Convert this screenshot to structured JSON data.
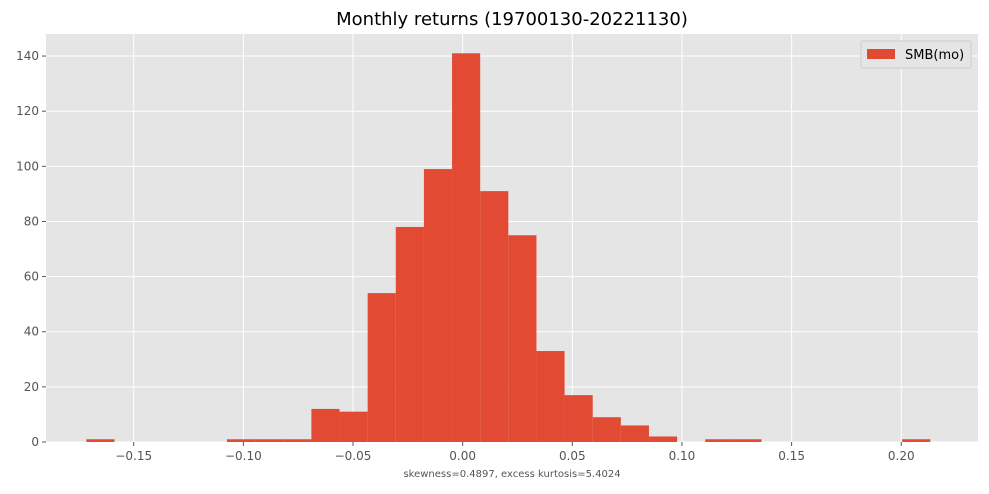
{
  "chart_data": {
    "type": "bar",
    "title": "Monthly returns (19700130-20221130)",
    "xlabel": "",
    "ylabel": "",
    "annotation": "skewness=0.4897, excess kurtosis=5.4024",
    "xlim": [
      -0.19,
      0.235
    ],
    "ylim": [
      0,
      148
    ],
    "x_ticks": [
      -0.15,
      -0.1,
      -0.05,
      0.0,
      0.05,
      0.1,
      0.15,
      0.2
    ],
    "x_tick_labels": [
      "−0.15",
      "−0.10",
      "−0.05",
      "0.00",
      "0.05",
      "0.10",
      "0.15",
      "0.20"
    ],
    "y_ticks": [
      0,
      20,
      40,
      60,
      80,
      100,
      120,
      140
    ],
    "y_tick_labels": [
      "0",
      "20",
      "40",
      "60",
      "80",
      "100",
      "120",
      "140"
    ],
    "grid": true,
    "legend": {
      "position": "top-right",
      "entries": [
        "SMB(mo)"
      ]
    },
    "series": [
      {
        "name": "SMB(mo)",
        "color": "#E24A33",
        "bin_start": -0.1716,
        "bin_width": 0.012828,
        "counts": [
          1,
          0,
          0,
          0,
          0,
          1,
          1,
          1,
          12,
          11,
          54,
          78,
          99,
          141,
          91,
          75,
          33,
          17,
          9,
          6,
          2,
          0,
          1,
          1,
          0,
          0,
          0,
          0,
          0,
          1
        ]
      }
    ]
  },
  "colors": {
    "plot_background": "#E5E5E5",
    "grid": "#FFFFFF",
    "bar": "#E24A33",
    "text": "#555555",
    "title": "#000000"
  }
}
